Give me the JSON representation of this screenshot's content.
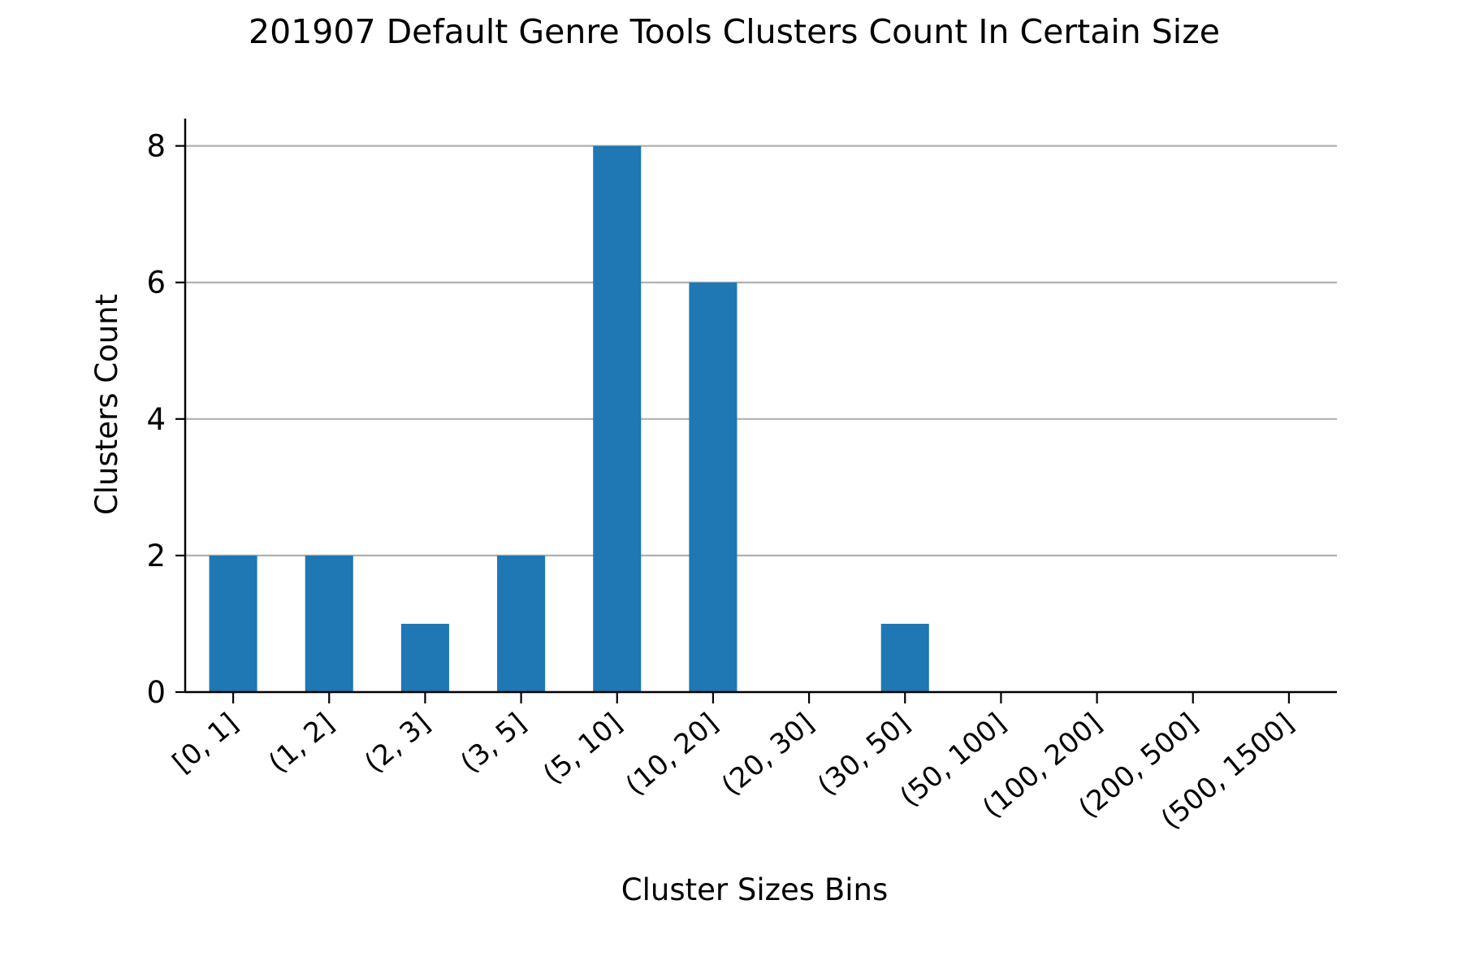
{
  "chart_data": {
    "type": "bar",
    "title": "201907 Default Genre Tools Clusters Count In Certain Size",
    "xlabel": "Cluster Sizes Bins",
    "ylabel": "Clusters Count",
    "categories": [
      "[0, 1]",
      "(1, 2]",
      "(2, 3]",
      "(3, 5]",
      "(5, 10]",
      "(10, 20]",
      "(20, 30]",
      "(30, 50]",
      "(50, 100]",
      "(100, 200]",
      "(200, 500]",
      "(500, 1500]"
    ],
    "values": [
      2,
      2,
      1,
      2,
      8,
      6,
      0,
      1,
      0,
      0,
      0,
      0
    ],
    "ylim": [
      0,
      8.4
    ],
    "yticks": [
      0,
      2,
      4,
      6,
      8
    ],
    "grid": "horizontal",
    "bar_color": "#1f77b4",
    "grid_color": "#b0b0b0"
  }
}
